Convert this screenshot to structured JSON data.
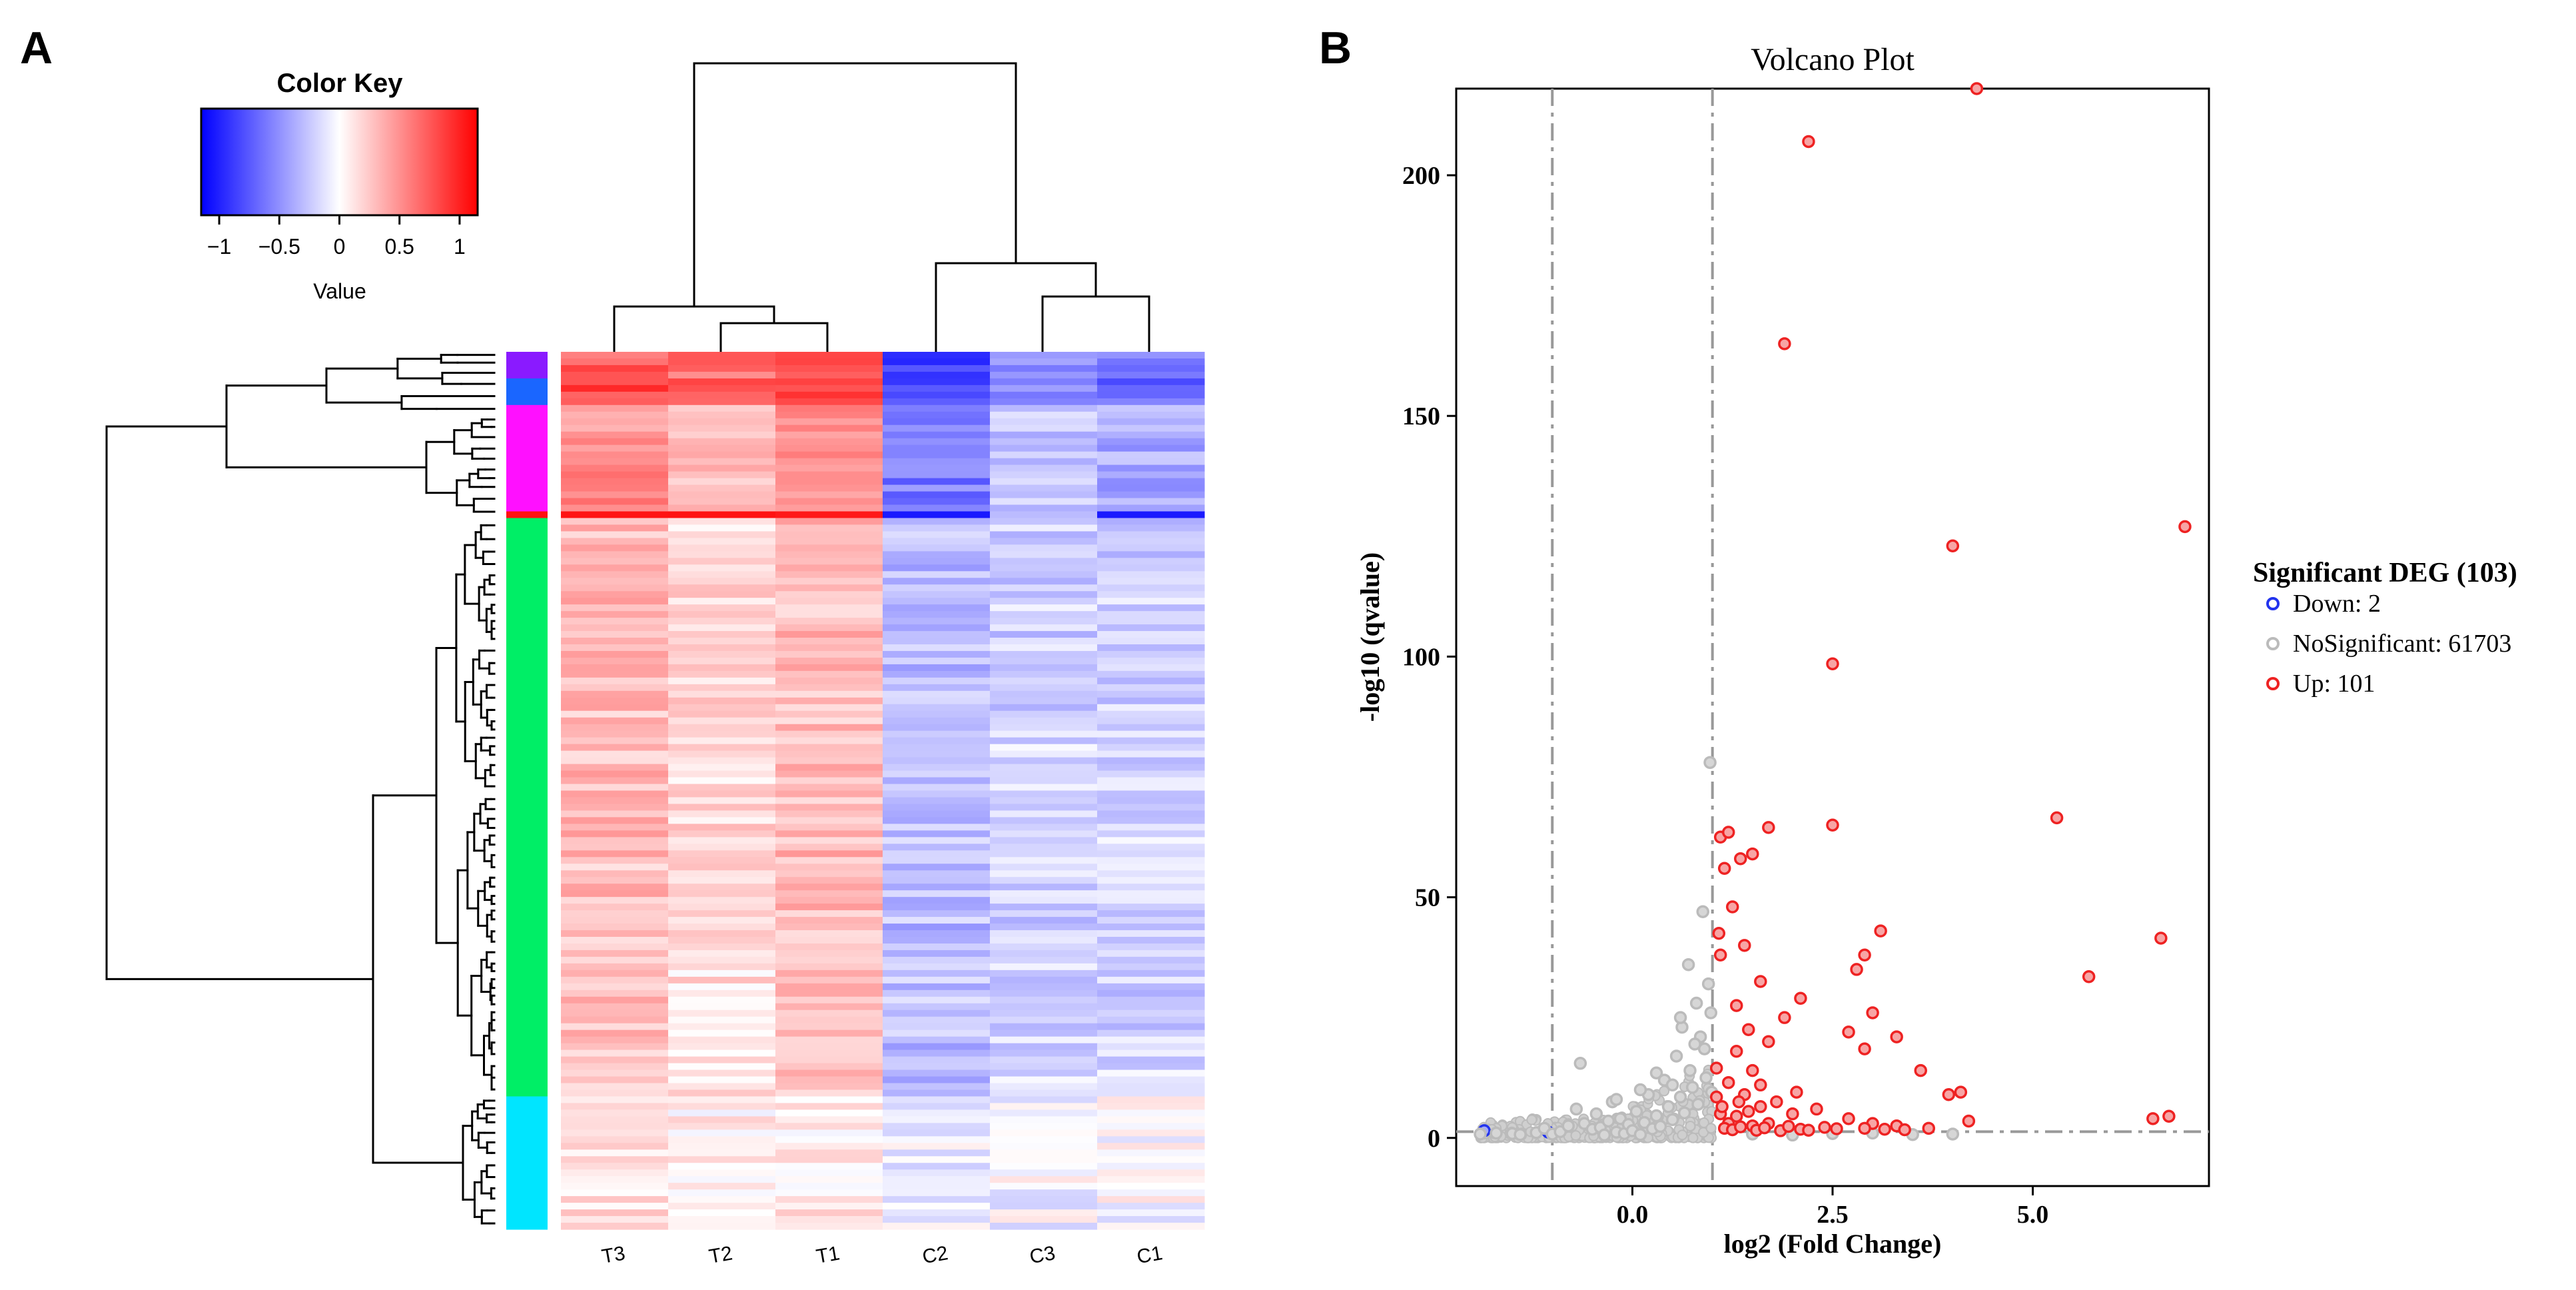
{
  "panel_a": {
    "label": "A",
    "color_key": {
      "title": "Color Key",
      "xlabel": "Value",
      "range": [
        -1.15,
        1.15
      ],
      "ticks": [
        -1,
        -0.5,
        0,
        0.5,
        1
      ],
      "tick_labels": [
        "−1",
        "−0.5",
        "0",
        "0.5",
        "1"
      ],
      "low_color": "#0000ff",
      "mid_color": "#ffffff",
      "high_color": "#ff0000"
    },
    "cluster_colors": [
      "#8a1aff",
      "#1a66ff",
      "#ff10ff",
      "#ff1010",
      "#00ee66",
      "#00e5ff"
    ]
  },
  "panel_b": {
    "label": "B",
    "legend": {
      "title": "Significant DEG (103)",
      "items": [
        {
          "label": "Down: 2",
          "color": "#2233ee"
        },
        {
          "label": "NoSignificant: 61703",
          "color": "#bbbbbb"
        },
        {
          "label": "Up: 101",
          "color": "#ee2222"
        }
      ]
    }
  },
  "chart_data": [
    {
      "type": "heatmap",
      "title": "",
      "columns": [
        "T3",
        "T2",
        "T1",
        "C2",
        "C3",
        "C1"
      ],
      "value_range": [
        -1.15,
        1.15
      ],
      "row_clusters": [
        {
          "name": "purple",
          "color": "#8a1aff",
          "rows": 4,
          "values": [
            0.75,
            0.65,
            0.8,
            -0.85,
            -0.55,
            -0.55
          ]
        },
        {
          "name": "blue",
          "color": "#1a66ff",
          "rows": 4,
          "values": [
            0.8,
            0.7,
            0.85,
            -0.85,
            -0.6,
            -0.7
          ]
        },
        {
          "name": "magenta",
          "color": "#ff10ff",
          "rows": 16,
          "values": [
            0.5,
            0.35,
            0.5,
            -0.6,
            -0.3,
            -0.4
          ]
        },
        {
          "name": "red",
          "color": "#ff1010",
          "rows": 1,
          "values": [
            1.05,
            1.05,
            1.05,
            -1.05,
            -0.4,
            -1.05
          ]
        },
        {
          "name": "green",
          "color": "#00ee66",
          "rows": 87,
          "values": [
            0.3,
            0.15,
            0.3,
            -0.3,
            -0.2,
            -0.2
          ]
        },
        {
          "name": "cyan",
          "color": "#00e5ff",
          "rows": 20,
          "values": [
            0.12,
            0.04,
            0.08,
            -0.06,
            -0.04,
            -0.02
          ]
        }
      ]
    },
    {
      "type": "scatter",
      "title": "Volcano Plot",
      "xlabel": "log2 (Fold Change)",
      "ylabel": "-log10 (qvalue)",
      "xlim": [
        -2.2,
        7.2
      ],
      "ylim": [
        -10,
        218
      ],
      "xticks": [
        0.0,
        2.5,
        5.0
      ],
      "xtick_labels": [
        "0.0",
        "2.5",
        "5.0"
      ],
      "yticks": [
        0,
        50,
        100,
        150,
        200
      ],
      "ytick_labels": [
        "0",
        "50",
        "100",
        "150",
        "200"
      ],
      "fold_change_thresholds": [
        -1,
        1
      ],
      "qvalue_threshold": 1.3,
      "series": [
        {
          "name": "Down",
          "color": "#2233ee",
          "points": [
            [
              -1.85,
              1.5
            ],
            [
              -1.05,
              1.2
            ]
          ]
        },
        {
          "name": "NoSignificant",
          "color": "#bbbbbb",
          "points": [
            [
              -1.9,
              0.8
            ],
            [
              -1.7,
              1.0
            ],
            [
              -1.5,
              0.9
            ],
            [
              -1.4,
              0.7
            ],
            [
              -1.2,
              1.1
            ],
            [
              -1.1,
              2.0
            ],
            [
              -1.0,
              0.8
            ],
            [
              -0.9,
              1.3
            ],
            [
              -0.8,
              2.5
            ],
            [
              -0.7,
              6.0
            ],
            [
              -0.65,
              15.5
            ],
            [
              -0.6,
              3.0
            ],
            [
              -0.5,
              1.8
            ],
            [
              -0.45,
              5.0
            ],
            [
              -0.4,
              2.2
            ],
            [
              -0.35,
              0.6
            ],
            [
              -0.3,
              3.5
            ],
            [
              -0.25,
              7.5
            ],
            [
              -0.2,
              1.2
            ],
            [
              -0.15,
              4.0
            ],
            [
              -0.1,
              0.9
            ],
            [
              -0.05,
              2.8
            ],
            [
              0.0,
              1.5
            ],
            [
              0.05,
              5.5
            ],
            [
              0.1,
              0.7
            ],
            [
              0.15,
              3.2
            ],
            [
              0.2,
              9.0
            ],
            [
              0.25,
              1.9
            ],
            [
              0.3,
              4.6
            ],
            [
              0.35,
              2.4
            ],
            [
              0.4,
              12.0
            ],
            [
              0.45,
              6.5
            ],
            [
              0.5,
              3.8
            ],
            [
              0.55,
              17.0
            ],
            [
              0.6,
              8.5
            ],
            [
              0.62,
              23.0
            ],
            [
              0.65,
              5.2
            ],
            [
              0.7,
              36.0
            ],
            [
              0.72,
              14.0
            ],
            [
              0.75,
              10.5
            ],
            [
              0.8,
              28.0
            ],
            [
              0.82,
              7.0
            ],
            [
              0.85,
              21.0
            ],
            [
              0.88,
              47.0
            ],
            [
              0.9,
              18.5
            ],
            [
              0.92,
              12.5
            ],
            [
              0.95,
              32.0
            ],
            [
              0.97,
              78.0
            ],
            [
              0.98,
              26.0
            ],
            [
              0.99,
              9.5
            ],
            [
              1.5,
              0.8
            ],
            [
              2.0,
              0.6
            ],
            [
              2.5,
              0.9
            ],
            [
              3.0,
              1.0
            ],
            [
              3.5,
              0.7
            ],
            [
              4.0,
              0.8
            ],
            [
              0.3,
              13.5
            ],
            [
              0.5,
              11.0
            ],
            [
              -0.2,
              8.0
            ],
            [
              0.1,
              10.0
            ],
            [
              0.78,
              19.5
            ],
            [
              0.6,
              25.0
            ]
          ]
        },
        {
          "name": "Up",
          "color": "#ee2222",
          "points": [
            [
              4.3,
              218
            ],
            [
              2.2,
              207
            ],
            [
              1.9,
              165
            ],
            [
              4.0,
              123
            ],
            [
              6.9,
              127
            ],
            [
              2.5,
              98.5
            ],
            [
              1.1,
              62.5
            ],
            [
              1.2,
              63.5
            ],
            [
              1.35,
              58
            ],
            [
              1.5,
              59
            ],
            [
              1.7,
              64.5
            ],
            [
              2.5,
              65
            ],
            [
              5.3,
              66.5
            ],
            [
              1.15,
              56
            ],
            [
              1.25,
              48
            ],
            [
              1.08,
              42.5
            ],
            [
              1.4,
              40
            ],
            [
              1.1,
              38
            ],
            [
              1.6,
              32.5
            ],
            [
              2.1,
              29
            ],
            [
              2.8,
              35
            ],
            [
              2.9,
              38
            ],
            [
              3.1,
              43
            ],
            [
              3.0,
              26
            ],
            [
              2.7,
              22
            ],
            [
              2.9,
              18.5
            ],
            [
              3.3,
              21
            ],
            [
              3.6,
              14
            ],
            [
              4.1,
              9.5
            ],
            [
              3.95,
              9
            ],
            [
              5.7,
              33.5
            ],
            [
              6.6,
              41.5
            ],
            [
              1.3,
              18
            ],
            [
              1.5,
              14
            ],
            [
              1.7,
              20
            ],
            [
              1.2,
              11.5
            ],
            [
              1.05,
              8.5
            ],
            [
              1.4,
              9
            ],
            [
              1.6,
              6.5
            ],
            [
              1.8,
              7.5
            ],
            [
              2.0,
              5
            ],
            [
              2.3,
              6
            ],
            [
              2.7,
              4
            ],
            [
              3.0,
              3
            ],
            [
              3.3,
              2.5
            ],
            [
              3.7,
              2
            ],
            [
              4.2,
              3.5
            ],
            [
              1.9,
              25
            ],
            [
              1.3,
              27.5
            ],
            [
              1.45,
              22.5
            ],
            [
              1.1,
              5
            ],
            [
              1.2,
              3
            ],
            [
              1.3,
              4.5
            ],
            [
              1.5,
              2.5
            ],
            [
              1.7,
              3
            ],
            [
              2.1,
              1.8
            ],
            [
              2.4,
              2.2
            ],
            [
              2.9,
              2
            ],
            [
              3.4,
              1.7
            ],
            [
              6.5,
              4
            ],
            [
              6.7,
              4.5
            ],
            [
              1.15,
              2.0
            ],
            [
              1.25,
              1.7
            ],
            [
              1.35,
              2.3
            ],
            [
              1.55,
              1.6
            ],
            [
              1.65,
              2.1
            ],
            [
              1.85,
              1.5
            ],
            [
              2.2,
              1.6
            ],
            [
              1.12,
              6.5
            ],
            [
              1.33,
              7.5
            ],
            [
              1.45,
              5.5
            ],
            [
              2.55,
              1.9
            ],
            [
              3.15,
              1.8
            ],
            [
              1.95,
              2.4
            ],
            [
              1.05,
              14.5
            ],
            [
              1.6,
              11
            ],
            [
              2.05,
              9.5
            ]
          ]
        }
      ]
    }
  ]
}
